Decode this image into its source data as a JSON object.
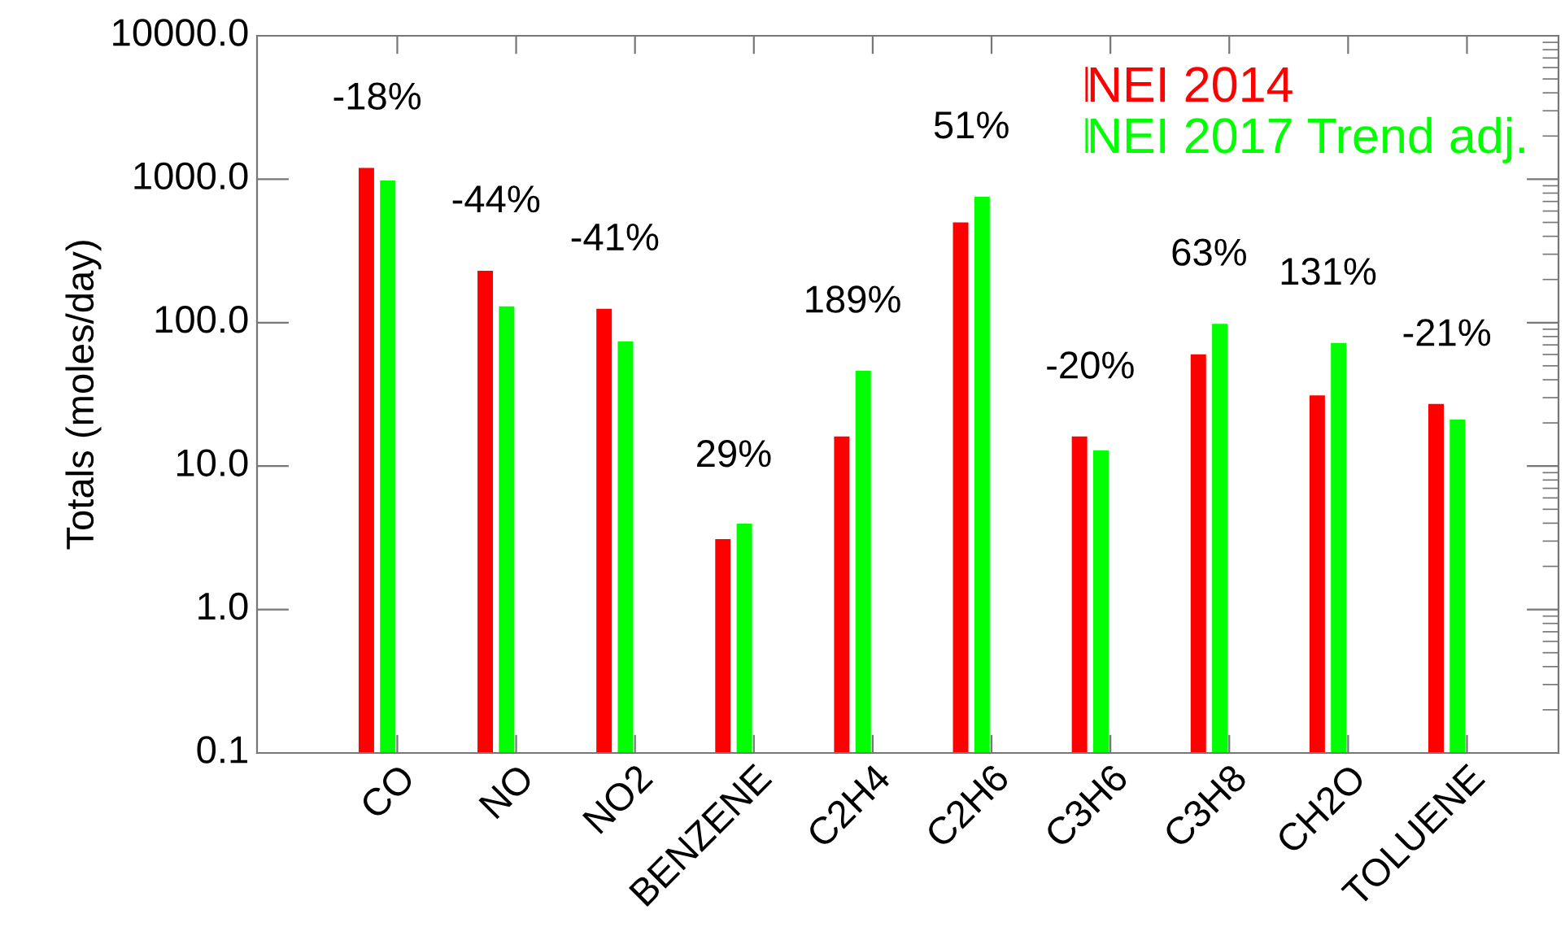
{
  "chart_data": {
    "type": "bar",
    "ylabel": "Totals (moles/day)",
    "categories": [
      "CO",
      "NO",
      "NO2",
      "BENZENE",
      "C2H4",
      "C2H6",
      "C3H6",
      "C3H8",
      "CH2O",
      "TOLUENE"
    ],
    "series": [
      {
        "name": "NEI 2014",
        "color": "#ff0000",
        "values": [
          1200,
          230,
          125,
          3.0,
          16,
          500,
          16,
          60,
          31,
          27
        ]
      },
      {
        "name": "NEI 2017 Trend adj.",
        "color": "#00ff00",
        "values": [
          980,
          130,
          74,
          3.87,
          46,
          755,
          12.8,
          98,
          72,
          21
        ]
      }
    ],
    "log": "y",
    "ylim": [
      0.1,
      10000
    ],
    "yticks": [
      {
        "value": 0.1,
        "label": "0.1"
      },
      {
        "value": 1,
        "label": "1.0"
      },
      {
        "value": 10,
        "label": "10.0"
      },
      {
        "value": 100,
        "label": "100.0"
      },
      {
        "value": 1000,
        "label": "1000.0"
      },
      {
        "value": 10000,
        "label": "10000.0"
      }
    ],
    "legend": "top right",
    "grid": false,
    "annotations": [
      "-18%",
      "-44%",
      "-41%",
      "29%",
      "189%",
      "51%",
      "-20%",
      "63%",
      "131%",
      "-21%"
    ]
  }
}
